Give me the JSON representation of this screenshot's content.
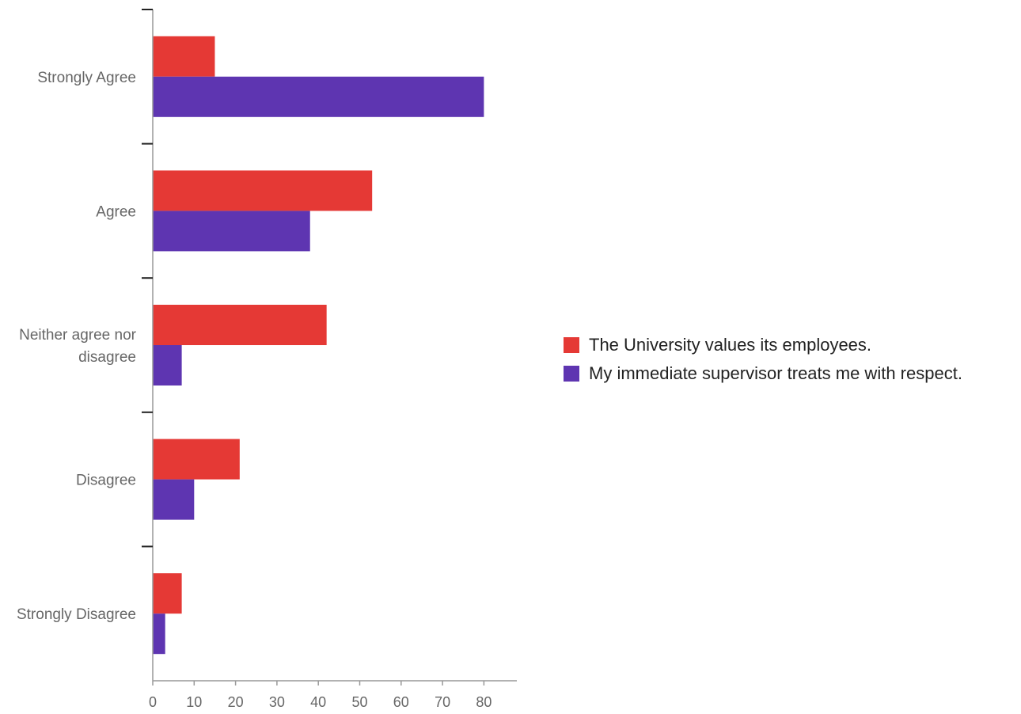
{
  "chart_data": {
    "type": "bar",
    "orientation": "horizontal",
    "title": "",
    "xlabel": "",
    "ylabel": "",
    "categories": [
      [
        "Strongly Agree"
      ],
      [
        "Agree"
      ],
      [
        "Neither agree nor",
        "disagree"
      ],
      [
        "Disagree"
      ],
      [
        "Strongly Disagree"
      ]
    ],
    "series": [
      {
        "name": "The University values its employees.",
        "color": "#e53935",
        "values": [
          15,
          53,
          42,
          21,
          7
        ]
      },
      {
        "name": "My immediate supervisor treats me with respect.",
        "color": "#5e35b1",
        "values": [
          80,
          38,
          7,
          10,
          3
        ]
      }
    ],
    "xlim": [
      0,
      88
    ],
    "xticks": [
      0,
      10,
      20,
      30,
      40,
      50,
      60,
      70,
      80
    ],
    "grid": false,
    "legend_position": "right"
  }
}
